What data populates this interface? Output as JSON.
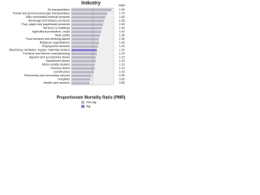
{
  "chart_data": {
    "type": "hbar",
    "title": "Industry",
    "value_header": "PMR",
    "x_label": "Proportionate Mortality Ratio (PMR)",
    "categories": [
      "Air transportation",
      "Transit and ground passenger transportation",
      "Misc nonmetallic mineral products",
      "Beverage and tobacco products",
      "Pulp, paper and paperboard products",
      "Services to buildings",
      "Agricultural production, crops",
      "Real estate",
      "Food services and drinking places",
      "Religious organizations",
      "Employment services",
      "Machinery, hardware, supply, materials dealers",
      "Furniture and fixtures manufacturing",
      "Apparel and accessories stores",
      "Department stores",
      "Motor vehicle dealers",
      "Grocery stores",
      "Construction",
      "Elementary and secondary schools",
      "Hospitals",
      "Health care services"
    ],
    "values": [
      1.9,
      1.7,
      1.6,
      1.55,
      1.5,
      1.45,
      1.4,
      1.35,
      1.3,
      1.3,
      1.25,
      1.2,
      1.2,
      1.15,
      1.15,
      1.1,
      1.1,
      1.05,
      0.95,
      0.9,
      0.85
    ],
    "value_labels": [
      "1.90",
      "1.70",
      "1.60",
      "1.55",
      "1.50",
      "1.45",
      "1.40",
      "1.35",
      "1.30",
      "1.30",
      "1.25",
      "1.20",
      "1.20",
      "1.15",
      "1.15",
      "1.10",
      "1.10",
      "1.05",
      "0.95",
      "0.90",
      "0.85"
    ],
    "significant": [
      false,
      false,
      false,
      false,
      false,
      false,
      false,
      false,
      false,
      false,
      false,
      true,
      false,
      false,
      false,
      false,
      false,
      false,
      false,
      false,
      false
    ],
    "xlim": [
      0,
      2
    ],
    "reference": 1,
    "legend": [
      {
        "name": "Non-sig",
        "color": "#b8b8c8"
      },
      {
        "name": "Sig",
        "color": "#8a7fd0"
      }
    ]
  }
}
